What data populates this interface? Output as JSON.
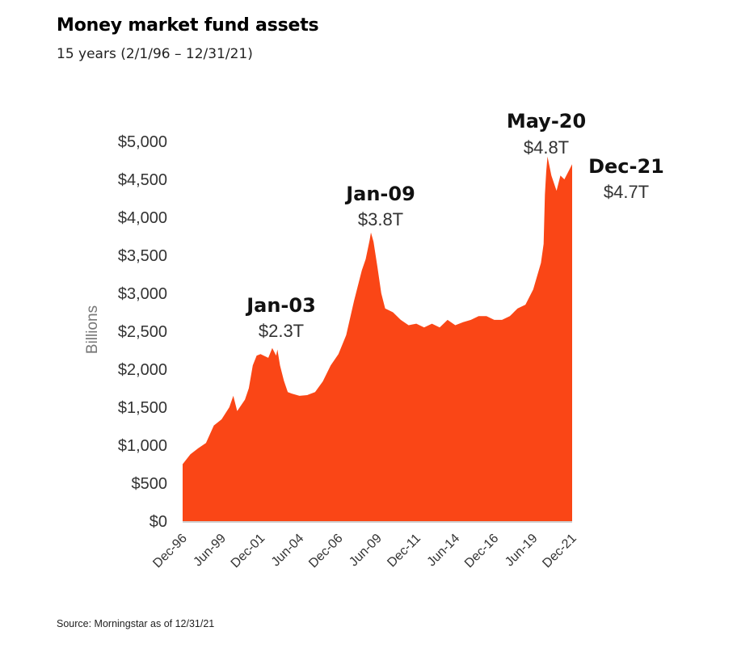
{
  "header": {
    "title": "Money market fund assets",
    "subtitle": "15 years (2/1/96 – 12/31/21)"
  },
  "footer": {
    "source": "Source: Morningstar as of 12/31/21"
  },
  "colors": {
    "area": "#fa4616",
    "baseline": "#cfcfcf"
  },
  "chart_data": {
    "type": "area",
    "ylabel": "Billions",
    "ylim": [
      0,
      5000
    ],
    "yticks": [
      0,
      500,
      1000,
      1500,
      2000,
      2500,
      3000,
      3500,
      4000,
      4500,
      5000
    ],
    "ytick_labels": [
      "$0",
      "$500",
      "$1,000",
      "$1,500",
      "$2,000",
      "$2,500",
      "$3,000",
      "$3,500",
      "$4,000",
      "$4,500",
      "$5,000"
    ],
    "xlim": [
      "1996-12",
      "2021-12"
    ],
    "xticks": [
      "1996-12",
      "1999-06",
      "2001-12",
      "2004-06",
      "2006-12",
      "2009-06",
      "2011-12",
      "2014-06",
      "2016-12",
      "2019-06",
      "2021-12"
    ],
    "xtick_labels": [
      "Dec-96",
      "Jun-99",
      "Dec-01",
      "Jun-04",
      "Dec-06",
      "Jun-09",
      "Dec-11",
      "Jun-14",
      "Dec-16",
      "Jun-19",
      "Dec-21"
    ],
    "grid": false,
    "series": [
      {
        "x": [
          "1996-12",
          "1997-06",
          "1997-12",
          "1998-06",
          "1998-12",
          "1999-06",
          "1999-12",
          "2000-03",
          "2000-06",
          "2000-12",
          "2001-03",
          "2001-06",
          "2001-09",
          "2001-12",
          "2002-06",
          "2002-09",
          "2002-12",
          "2003-01",
          "2003-03",
          "2003-06",
          "2003-09",
          "2003-12",
          "2004-06",
          "2004-12",
          "2005-06",
          "2005-12",
          "2006-06",
          "2006-12",
          "2007-06",
          "2007-12",
          "2008-06",
          "2008-09",
          "2008-12",
          "2009-01",
          "2009-03",
          "2009-06",
          "2009-09",
          "2009-12",
          "2010-06",
          "2010-12",
          "2011-06",
          "2011-12",
          "2012-06",
          "2012-12",
          "2013-06",
          "2013-12",
          "2014-06",
          "2014-12",
          "2015-06",
          "2015-12",
          "2016-06",
          "2016-12",
          "2017-06",
          "2017-12",
          "2018-06",
          "2018-12",
          "2019-06",
          "2019-12",
          "2020-02",
          "2020-03",
          "2020-04",
          "2020-05",
          "2020-08",
          "2020-12",
          "2021-03",
          "2021-06",
          "2021-09",
          "2021-12"
        ],
        "values": [
          750,
          880,
          960,
          1030,
          1260,
          1340,
          1500,
          1650,
          1450,
          1600,
          1750,
          2050,
          2180,
          2200,
          2150,
          2280,
          2180,
          2260,
          2050,
          1850,
          1700,
          1680,
          1650,
          1660,
          1700,
          1840,
          2050,
          2200,
          2450,
          2900,
          3300,
          3450,
          3700,
          3800,
          3680,
          3350,
          3000,
          2800,
          2750,
          2650,
          2580,
          2600,
          2550,
          2600,
          2550,
          2650,
          2580,
          2620,
          2650,
          2700,
          2700,
          2650,
          2650,
          2700,
          2800,
          2850,
          3050,
          3400,
          3650,
          4300,
          4600,
          4800,
          4550,
          4350,
          4550,
          4500,
          4600,
          4700
        ]
      }
    ],
    "annotations": [
      {
        "date": "Jan-03",
        "value": "$2.3T"
      },
      {
        "date": "Jan-09",
        "value": "$3.8T"
      },
      {
        "date": "May-20",
        "value": "$4.8T"
      },
      {
        "date": "Dec-21",
        "value": "$4.7T"
      }
    ]
  }
}
